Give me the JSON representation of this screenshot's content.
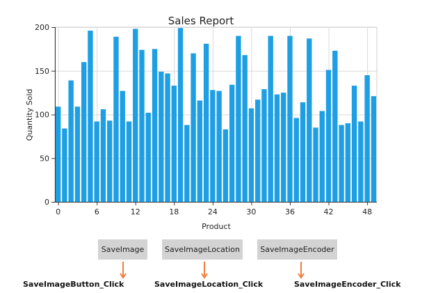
{
  "chart_data": {
    "type": "bar",
    "title": "Sales Report",
    "xlabel": "Product",
    "ylabel": "Quantity Sold",
    "ylim": [
      0,
      200
    ],
    "xlim": [
      -0.5,
      49.5
    ],
    "xticks": [
      0,
      6,
      12,
      18,
      24,
      30,
      36,
      42,
      48
    ],
    "yticks": [
      0,
      50,
      100,
      150,
      200
    ],
    "grid": true,
    "bar_color": "#1f9fe3",
    "categories": [
      0,
      1,
      2,
      3,
      4,
      5,
      6,
      7,
      8,
      9,
      10,
      11,
      12,
      13,
      14,
      15,
      16,
      17,
      18,
      19,
      20,
      21,
      22,
      23,
      24,
      25,
      26,
      27,
      28,
      29,
      30,
      31,
      32,
      33,
      34,
      35,
      36,
      37,
      38,
      39,
      40,
      41,
      42,
      43,
      44,
      45,
      46,
      47,
      48,
      49
    ],
    "values": [
      109,
      84,
      139,
      109,
      160,
      196,
      92,
      106,
      93,
      189,
      127,
      92,
      198,
      174,
      102,
      175,
      149,
      147,
      133,
      199,
      88,
      170,
      116,
      181,
      128,
      127,
      83,
      134,
      190,
      168,
      107,
      117,
      129,
      190,
      123,
      125,
      190,
      96,
      114,
      187,
      85,
      104,
      151,
      173,
      88,
      90,
      133,
      92,
      145,
      121
    ]
  },
  "buttons": {
    "save_image": "SaveImage",
    "save_image_location": "SaveImageLocation",
    "save_image_encoder": "SaveImageEncoder"
  },
  "handlers": {
    "save_image": "SaveImageButton_Click",
    "save_image_location": "SaveImageLocation_Click",
    "save_image_encoder": "SaveImageEncoder_Click"
  },
  "arrow_color": "#f27c3a"
}
